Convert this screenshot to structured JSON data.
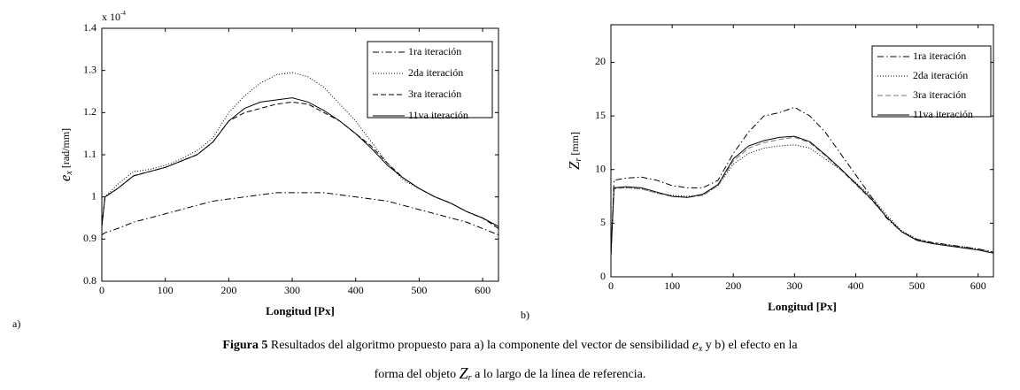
{
  "chart_data": [
    {
      "type": "line",
      "y_multiplier": "x 10",
      "y_multiplier_exp": "-4",
      "xlabel": "Longitud  [Px]",
      "ylabel": "e",
      "ylabel_sub": "x",
      "ylabel_unit": " [rad/mm]",
      "xlim": [
        0,
        625
      ],
      "xticks": [
        0,
        100,
        200,
        300,
        400,
        500,
        600
      ],
      "ylim": [
        0.8,
        1.4
      ],
      "yticks": [
        0.8,
        0.9,
        1,
        1.1,
        1.2,
        1.3,
        1.4
      ],
      "legend": "upper right",
      "x": [
        0,
        5,
        25,
        50,
        75,
        100,
        125,
        150,
        175,
        200,
        225,
        250,
        275,
        300,
        325,
        350,
        375,
        400,
        425,
        450,
        475,
        500,
        525,
        550,
        575,
        600,
        625
      ],
      "series": [
        {
          "name": "1ra  iteración",
          "color": "#000000",
          "style": "dashdot",
          "values": [
            0.91,
            0.915,
            0.925,
            0.94,
            0.95,
            0.96,
            0.97,
            0.98,
            0.99,
            0.995,
            1.0,
            1.005,
            1.01,
            1.01,
            1.01,
            1.01,
            1.005,
            1.0,
            0.995,
            0.99,
            0.98,
            0.97,
            0.96,
            0.95,
            0.94,
            0.925,
            0.91
          ]
        },
        {
          "name": "2da  iteración",
          "color": "#000000",
          "style": "dotted",
          "values": [
            0.93,
            1.0,
            1.03,
            1.06,
            1.065,
            1.075,
            1.09,
            1.11,
            1.14,
            1.2,
            1.24,
            1.27,
            1.29,
            1.295,
            1.285,
            1.26,
            1.22,
            1.18,
            1.13,
            1.08,
            1.04,
            1.02,
            1.0,
            0.985,
            0.965,
            0.95,
            0.93
          ]
        },
        {
          "name": "3ra  iteración",
          "color": "#000000",
          "style": "dashed",
          "values": [
            0.93,
            1.0,
            1.02,
            1.05,
            1.06,
            1.07,
            1.085,
            1.1,
            1.13,
            1.18,
            1.2,
            1.21,
            1.22,
            1.225,
            1.22,
            1.2,
            1.18,
            1.15,
            1.12,
            1.08,
            1.045,
            1.02,
            1.0,
            0.985,
            0.965,
            0.95,
            0.925
          ]
        },
        {
          "name": "11va iteración",
          "color": "#000000",
          "style": "solid",
          "values": [
            0.93,
            1.0,
            1.02,
            1.05,
            1.06,
            1.07,
            1.085,
            1.1,
            1.13,
            1.18,
            1.21,
            1.225,
            1.23,
            1.235,
            1.225,
            1.205,
            1.18,
            1.15,
            1.115,
            1.075,
            1.045,
            1.02,
            1.0,
            0.985,
            0.965,
            0.95,
            0.93
          ]
        }
      ]
    },
    {
      "type": "line",
      "xlabel": "Longitud  [Px]",
      "ylabel": "Z",
      "ylabel_sub": "r",
      "ylabel_unit": " [mm]",
      "xlim": [
        0,
        625
      ],
      "xticks": [
        0,
        100,
        200,
        300,
        400,
        500,
        600
      ],
      "ylim": [
        0,
        23.5
      ],
      "yticks": [
        0,
        5,
        10,
        15,
        20
      ],
      "legend": "upper right",
      "x": [
        0,
        5,
        25,
        50,
        75,
        100,
        125,
        150,
        175,
        200,
        225,
        250,
        275,
        300,
        325,
        350,
        375,
        400,
        425,
        450,
        475,
        500,
        525,
        550,
        575,
        600,
        625
      ],
      "series": [
        {
          "name": "1ra  iteración",
          "color": "#000000",
          "style": "dashdot",
          "values": [
            2,
            9,
            9.2,
            9.3,
            9,
            8.5,
            8.3,
            8.3,
            9,
            11.5,
            13.5,
            15,
            15.3,
            15.8,
            15,
            13.5,
            11.5,
            9.5,
            7.5,
            5.5,
            4.2,
            3.5,
            3.2,
            3,
            2.8,
            2.6,
            2.3
          ]
        },
        {
          "name": "2da  iteración",
          "color": "#000000",
          "style": "dotted",
          "values": [
            2,
            8.3,
            8.3,
            8.2,
            7.8,
            7.6,
            7.5,
            7.6,
            8.5,
            10.5,
            11.5,
            12,
            12.2,
            12.3,
            12,
            11,
            10,
            8.8,
            7.5,
            5.8,
            4.3,
            3.5,
            3.2,
            3,
            2.8,
            2.6,
            2.3
          ]
        },
        {
          "name": "3ra  iteración",
          "color": "#777777",
          "style": "dashed",
          "values": [
            2,
            8.2,
            8.3,
            8.2,
            7.8,
            7.5,
            7.4,
            7.6,
            8.5,
            10.8,
            12,
            12.5,
            12.8,
            13,
            12.5,
            11.3,
            10,
            8.6,
            7.2,
            5.6,
            4.2,
            3.4,
            3.1,
            2.9,
            2.7,
            2.5,
            2.2
          ]
        },
        {
          "name": "11va iteración",
          "color": "#000000",
          "style": "solid",
          "values": [
            2,
            8.3,
            8.4,
            8.3,
            7.9,
            7.5,
            7.4,
            7.7,
            8.6,
            11,
            12.2,
            12.7,
            13,
            13.1,
            12.6,
            11.4,
            10.1,
            8.7,
            7.3,
            5.6,
            4.2,
            3.4,
            3.1,
            2.9,
            2.7,
            2.5,
            2.2
          ]
        }
      ]
    }
  ],
  "panel_labels": [
    "a)",
    "b)"
  ],
  "caption": {
    "label": "Figura 5",
    "line1_a": "  Resultados del algoritmo propuesto para a) la componente del vector de sensibilidad  ",
    "symbol1": "e",
    "symbol1_sub": "x",
    "line1_b": " y b) el efecto en la",
    "line2_a": "forma del objeto  ",
    "symbol2": "Z",
    "symbol2_sub": "r",
    "line2_b": "  a lo largo de la línea de referencia."
  }
}
